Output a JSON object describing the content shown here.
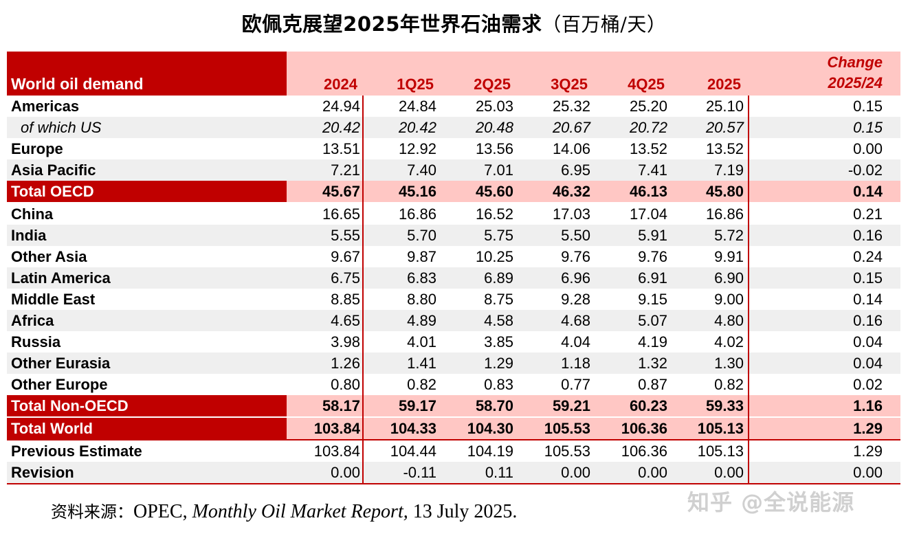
{
  "title": {
    "main": "欧佩克展望2025年世界石油需求",
    "unit": "（百万桶/天）"
  },
  "header": {
    "label": "World oil demand",
    "columns": [
      "2024",
      "1Q25",
      "2Q25",
      "3Q25",
      "4Q25",
      "2025"
    ],
    "change_line1": "Change",
    "change_line2": "2025/24"
  },
  "rows": [
    {
      "label": "Americas",
      "values": [
        "24.94",
        "24.84",
        "25.03",
        "25.32",
        "25.20",
        "25.10"
      ],
      "change": "0.15"
    },
    {
      "label": "of which US",
      "values": [
        "20.42",
        "20.42",
        "20.48",
        "20.67",
        "20.72",
        "20.57"
      ],
      "change": "0.15"
    },
    {
      "label": "Europe",
      "values": [
        "13.51",
        "12.92",
        "13.56",
        "14.06",
        "13.52",
        "13.52"
      ],
      "change": "0.00"
    },
    {
      "label": "Asia Pacific",
      "values": [
        "7.21",
        "7.40",
        "7.01",
        "6.95",
        "7.41",
        "7.19"
      ],
      "change": "-0.02"
    },
    {
      "label": "Total OECD",
      "values": [
        "45.67",
        "45.16",
        "45.60",
        "46.32",
        "46.13",
        "45.80"
      ],
      "change": "0.14"
    },
    {
      "label": "China",
      "values": [
        "16.65",
        "16.86",
        "16.52",
        "17.03",
        "17.04",
        "16.86"
      ],
      "change": "0.21"
    },
    {
      "label": "India",
      "values": [
        "5.55",
        "5.70",
        "5.75",
        "5.50",
        "5.91",
        "5.72"
      ],
      "change": "0.16"
    },
    {
      "label": "Other Asia",
      "values": [
        "9.67",
        "9.87",
        "10.25",
        "9.76",
        "9.76",
        "9.91"
      ],
      "change": "0.24"
    },
    {
      "label": "Latin America",
      "values": [
        "6.75",
        "6.83",
        "6.89",
        "6.96",
        "6.91",
        "6.90"
      ],
      "change": "0.15"
    },
    {
      "label": "Middle East",
      "values": [
        "8.85",
        "8.80",
        "8.75",
        "9.28",
        "9.15",
        "9.00"
      ],
      "change": "0.14"
    },
    {
      "label": "Africa",
      "values": [
        "4.65",
        "4.89",
        "4.58",
        "4.68",
        "5.07",
        "4.80"
      ],
      "change": "0.16"
    },
    {
      "label": "Russia",
      "values": [
        "3.98",
        "4.01",
        "3.85",
        "4.04",
        "4.19",
        "4.02"
      ],
      "change": "0.04"
    },
    {
      "label": "Other Eurasia",
      "values": [
        "1.26",
        "1.41",
        "1.29",
        "1.18",
        "1.32",
        "1.30"
      ],
      "change": "0.04"
    },
    {
      "label": "Other Europe",
      "values": [
        "0.80",
        "0.82",
        "0.83",
        "0.77",
        "0.87",
        "0.82"
      ],
      "change": "0.02"
    },
    {
      "label": "Total Non-OECD",
      "values": [
        "58.17",
        "59.17",
        "58.70",
        "59.21",
        "60.23",
        "59.33"
      ],
      "change": "1.16"
    },
    {
      "label": "Total World",
      "values": [
        "103.84",
        "104.33",
        "104.30",
        "105.53",
        "106.36",
        "105.13"
      ],
      "change": "1.29"
    },
    {
      "label": "Previous Estimate",
      "values": [
        "103.84",
        "104.44",
        "104.19",
        "105.53",
        "106.36",
        "105.13"
      ],
      "change": "1.29"
    },
    {
      "label": "Revision",
      "values": [
        "0.00",
        "-0.11",
        "0.11",
        "0.00",
        "0.00",
        "0.00"
      ],
      "change": "0.00"
    }
  ],
  "source": {
    "label": "资料来源：",
    "prefix": "OPEC, ",
    "publication": "Monthly Oil Market Report,",
    "date": " 13 July 2025."
  },
  "watermark": "知乎 @全说能源",
  "colors": {
    "accent": "#c00000",
    "total_fill": "#ffc7c4",
    "alt_row": "#efefef"
  }
}
